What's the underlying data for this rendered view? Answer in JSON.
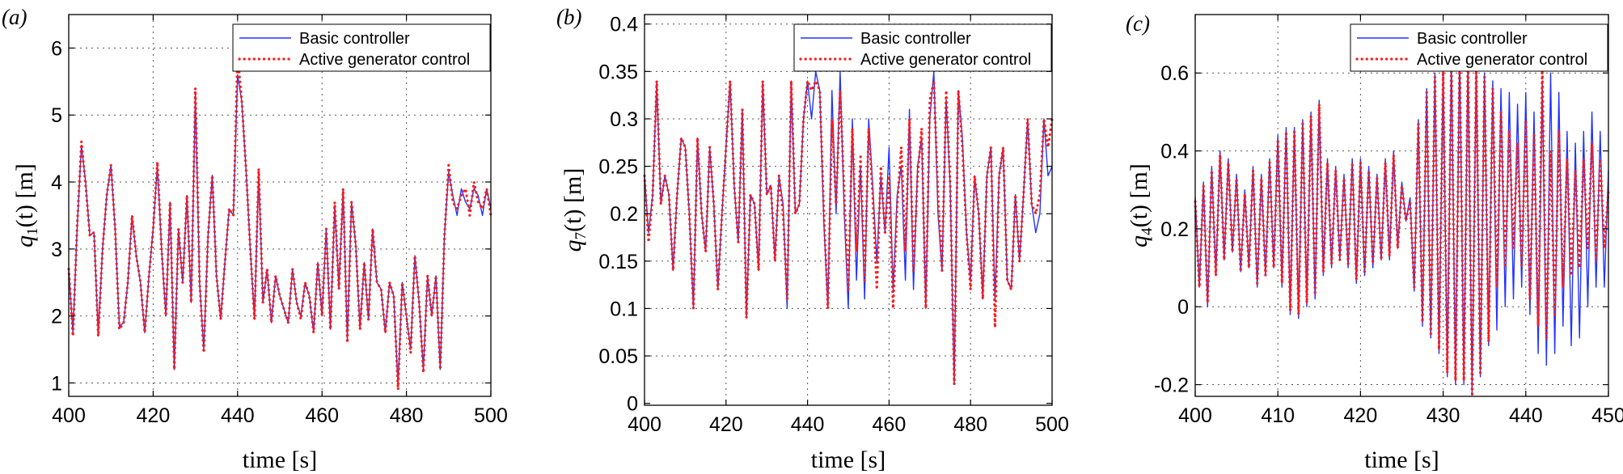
{
  "colors": {
    "basic": "#2233ff",
    "active": "#ff1a1a",
    "grid": "#555555",
    "frame": "#000000"
  },
  "chart_data": [
    {
      "type": "line",
      "panel_label": "(a)",
      "xlabel": "time [s]",
      "ylabel_var": "q",
      "ylabel_sub": "1",
      "ylabel_rest": "(t) [m]",
      "xlim": [
        400,
        500
      ],
      "ylim": [
        0.8,
        6.5
      ],
      "xticks": [
        400,
        420,
        440,
        460,
        480,
        500
      ],
      "yticks": [
        1,
        2,
        3,
        4,
        5,
        6
      ],
      "legend": [
        "Basic controller",
        "Active generator control"
      ],
      "legend_position": "top-right",
      "grid": true,
      "x": [
        400,
        401,
        402,
        403,
        404,
        405,
        406,
        407,
        408,
        409,
        410,
        411,
        412,
        413,
        414,
        415,
        416,
        417,
        418,
        419,
        420,
        421,
        422,
        423,
        424,
        425,
        426,
        427,
        428,
        429,
        430,
        431,
        432,
        433,
        434,
        435,
        436,
        437,
        438,
        439,
        440,
        441,
        442,
        443,
        444,
        445,
        446,
        447,
        448,
        449,
        450,
        451,
        452,
        453,
        454,
        455,
        456,
        457,
        458,
        459,
        460,
        461,
        462,
        463,
        464,
        465,
        466,
        467,
        468,
        469,
        470,
        471,
        472,
        473,
        474,
        475,
        476,
        477,
        478,
        479,
        480,
        481,
        482,
        483,
        484,
        485,
        486,
        487,
        488,
        489,
        490,
        491,
        492,
        493,
        494,
        495,
        496,
        497,
        498,
        499,
        500
      ],
      "series": [
        {
          "name": "Basic controller",
          "style": "solid",
          "values": [
            2.7,
            1.75,
            3.3,
            4.55,
            4.0,
            3.2,
            3.25,
            1.7,
            3.0,
            3.8,
            4.25,
            3.3,
            1.85,
            1.9,
            2.5,
            3.5,
            2.9,
            2.5,
            1.75,
            2.6,
            3.3,
            4.25,
            3.0,
            2.0,
            3.7,
            1.2,
            3.3,
            2.5,
            3.8,
            2.2,
            5.3,
            2.5,
            1.5,
            3.2,
            4.1,
            2.6,
            1.95,
            2.8,
            3.6,
            3.5,
            5.6,
            5.2,
            4.2,
            3.0,
            1.95,
            4.15,
            2.2,
            2.7,
            1.9,
            2.6,
            2.3,
            2.1,
            1.9,
            2.7,
            2.2,
            2.0,
            2.5,
            2.3,
            1.75,
            2.8,
            2.0,
            3.3,
            1.8,
            3.65,
            2.4,
            3.9,
            1.65,
            3.7,
            3.05,
            1.8,
            2.8,
            1.95,
            3.3,
            2.5,
            2.4,
            1.75,
            2.5,
            2.3,
            0.95,
            2.5,
            2.0,
            1.5,
            2.9,
            2.2,
            1.2,
            2.6,
            2.0,
            2.6,
            1.2,
            3.2,
            4.15,
            3.8,
            3.5,
            3.9,
            3.7,
            3.6,
            3.9,
            3.8,
            3.5,
            3.9,
            3.6
          ]
        },
        {
          "name": "Active generator control",
          "style": "dotted",
          "values": [
            2.7,
            1.7,
            3.35,
            4.6,
            3.95,
            3.2,
            3.25,
            1.7,
            3.0,
            3.8,
            4.25,
            3.3,
            1.8,
            1.9,
            2.5,
            3.5,
            2.9,
            2.5,
            1.75,
            2.6,
            3.3,
            4.3,
            3.0,
            2.0,
            3.7,
            1.2,
            3.3,
            2.5,
            3.8,
            2.2,
            5.4,
            2.5,
            1.45,
            3.2,
            4.1,
            2.6,
            1.95,
            2.8,
            3.6,
            3.5,
            5.9,
            5.2,
            4.2,
            3.0,
            1.95,
            4.2,
            2.2,
            2.7,
            1.9,
            2.6,
            2.3,
            2.1,
            1.9,
            2.7,
            2.2,
            1.95,
            2.5,
            2.3,
            1.75,
            2.8,
            2.0,
            3.3,
            1.8,
            3.7,
            2.4,
            3.9,
            1.6,
            3.7,
            3.05,
            1.8,
            2.8,
            1.95,
            3.3,
            2.5,
            2.4,
            1.75,
            2.5,
            2.3,
            0.9,
            2.5,
            2.0,
            1.45,
            2.9,
            2.2,
            1.15,
            2.6,
            2.0,
            2.6,
            1.2,
            3.2,
            4.25,
            3.7,
            3.6,
            3.8,
            3.9,
            3.5,
            4.0,
            3.7,
            3.6,
            3.9,
            3.5
          ]
        }
      ]
    },
    {
      "type": "line",
      "panel_label": "(b)",
      "xlabel": "time [s]",
      "ylabel_var": "q",
      "ylabel_sub": "7",
      "ylabel_rest": "(t) [m]",
      "xlim": [
        400,
        500
      ],
      "ylim": [
        -0.002,
        0.41
      ],
      "xticks": [
        400,
        420,
        440,
        460,
        480,
        500
      ],
      "yticks": [
        0,
        0.05,
        0.1,
        0.15,
        0.2,
        0.25,
        0.3,
        0.35,
        0.4
      ],
      "legend": [
        "Basic controller",
        "Active generator control"
      ],
      "legend_position": "top-right",
      "grid": true,
      "x": [
        400,
        401,
        402,
        403,
        404,
        405,
        406,
        407,
        408,
        409,
        410,
        411,
        412,
        413,
        414,
        415,
        416,
        417,
        418,
        419,
        420,
        421,
        422,
        423,
        424,
        425,
        426,
        427,
        428,
        429,
        430,
        431,
        432,
        433,
        434,
        435,
        436,
        437,
        438,
        439,
        440,
        441,
        442,
        443,
        444,
        445,
        446,
        447,
        448,
        449,
        450,
        451,
        452,
        453,
        454,
        455,
        456,
        457,
        458,
        459,
        460,
        461,
        462,
        463,
        464,
        465,
        466,
        467,
        468,
        469,
        470,
        471,
        472,
        473,
        474,
        475,
        476,
        477,
        478,
        479,
        480,
        481,
        482,
        483,
        484,
        485,
        486,
        487,
        488,
        489,
        490,
        491,
        492,
        493,
        494,
        495,
        496,
        497,
        498,
        499,
        500
      ],
      "series": [
        {
          "name": "Basic controller",
          "style": "solid",
          "values": [
            0.24,
            0.18,
            0.22,
            0.34,
            0.21,
            0.24,
            0.22,
            0.14,
            0.22,
            0.28,
            0.27,
            0.2,
            0.1,
            0.28,
            0.2,
            0.16,
            0.27,
            0.21,
            0.12,
            0.2,
            0.27,
            0.34,
            0.23,
            0.17,
            0.31,
            0.09,
            0.22,
            0.21,
            0.14,
            0.34,
            0.22,
            0.23,
            0.15,
            0.24,
            0.21,
            0.1,
            0.34,
            0.2,
            0.21,
            0.3,
            0.34,
            0.3,
            0.35,
            0.33,
            0.19,
            0.1,
            0.33,
            0.2,
            0.35,
            0.2,
            0.1,
            0.3,
            0.13,
            0.25,
            0.11,
            0.3,
            0.23,
            0.15,
            0.24,
            0.18,
            0.27,
            0.12,
            0.22,
            0.25,
            0.13,
            0.31,
            0.12,
            0.25,
            0.28,
            0.1,
            0.3,
            0.35,
            0.2,
            0.14,
            0.32,
            0.23,
            0.02,
            0.33,
            0.28,
            0.18,
            0.13,
            0.24,
            0.2,
            0.11,
            0.24,
            0.27,
            0.11,
            0.24,
            0.27,
            0.13,
            0.12,
            0.22,
            0.15,
            0.22,
            0.3,
            0.21,
            0.18,
            0.2,
            0.3,
            0.24,
            0.25
          ]
        },
        {
          "name": "Active generator control",
          "style": "dotted",
          "values": [
            0.24,
            0.17,
            0.22,
            0.34,
            0.21,
            0.24,
            0.22,
            0.14,
            0.22,
            0.28,
            0.27,
            0.2,
            0.1,
            0.28,
            0.2,
            0.16,
            0.27,
            0.21,
            0.12,
            0.2,
            0.27,
            0.34,
            0.23,
            0.17,
            0.31,
            0.09,
            0.22,
            0.21,
            0.14,
            0.34,
            0.22,
            0.23,
            0.15,
            0.24,
            0.2,
            0.11,
            0.34,
            0.2,
            0.21,
            0.3,
            0.34,
            0.33,
            0.34,
            0.33,
            0.2,
            0.1,
            0.3,
            0.21,
            0.33,
            0.22,
            0.12,
            0.29,
            0.16,
            0.26,
            0.13,
            0.29,
            0.22,
            0.12,
            0.25,
            0.18,
            0.24,
            0.1,
            0.21,
            0.27,
            0.16,
            0.3,
            0.14,
            0.24,
            0.29,
            0.1,
            0.32,
            0.34,
            0.22,
            0.14,
            0.33,
            0.23,
            0.02,
            0.33,
            0.27,
            0.18,
            0.12,
            0.24,
            0.2,
            0.11,
            0.24,
            0.27,
            0.08,
            0.24,
            0.27,
            0.13,
            0.12,
            0.22,
            0.15,
            0.22,
            0.3,
            0.21,
            0.2,
            0.22,
            0.3,
            0.27,
            0.3
          ]
        }
      ]
    },
    {
      "type": "line",
      "panel_label": "(c)",
      "xlabel": "time [s]",
      "ylabel_var": "q",
      "ylabel_sub": "4",
      "ylabel_rest": "(t) [m]",
      "xlim": [
        400,
        450
      ],
      "ylim": [
        -0.23,
        0.75
      ],
      "xticks": [
        400,
        410,
        420,
        430,
        440,
        450
      ],
      "yticks": [
        -0.2,
        0,
        0.2,
        0.4,
        0.6
      ],
      "legend": [
        "Basic controller",
        "Active generator control"
      ],
      "legend_position": "top-right",
      "grid": true,
      "x": [
        400,
        400.5,
        401,
        401.5,
        402,
        402.5,
        403,
        403.5,
        404,
        404.5,
        405,
        405.5,
        406,
        406.5,
        407,
        407.5,
        408,
        408.5,
        409,
        409.5,
        410,
        410.5,
        411,
        411.5,
        412,
        412.5,
        413,
        413.5,
        414,
        414.5,
        415,
        415.5,
        416,
        416.5,
        417,
        417.5,
        418,
        418.5,
        419,
        419.5,
        420,
        420.5,
        421,
        421.5,
        422,
        422.5,
        423,
        423.5,
        424,
        424.5,
        425,
        425.5,
        426,
        426.5,
        427,
        427.5,
        428,
        428.5,
        429,
        429.5,
        430,
        430.5,
        431,
        431.5,
        432,
        432.5,
        433,
        433.5,
        434,
        434.5,
        435,
        435.5,
        436,
        436.5,
        437,
        437.5,
        438,
        438.5,
        439,
        439.5,
        440,
        440.5,
        441,
        441.5,
        442,
        442.5,
        443,
        443.5,
        444,
        444.5,
        445,
        445.5,
        446,
        446.5,
        447,
        447.5,
        448,
        448.5,
        449,
        449.5,
        450
      ],
      "series": [
        {
          "name": "Basic controller",
          "style": "solid",
          "values": [
            0.28,
            0.05,
            0.32,
            0.0,
            0.36,
            0.08,
            0.4,
            0.12,
            0.38,
            0.14,
            0.34,
            0.09,
            0.3,
            0.1,
            0.36,
            0.05,
            0.34,
            0.08,
            0.38,
            0.1,
            0.44,
            0.05,
            0.46,
            -0.02,
            0.46,
            -0.03,
            0.48,
            0.0,
            0.5,
            0.02,
            0.53,
            0.08,
            0.38,
            0.1,
            0.36,
            0.12,
            0.34,
            0.1,
            0.38,
            0.06,
            0.38,
            0.08,
            0.36,
            0.1,
            0.34,
            0.12,
            0.38,
            0.12,
            0.4,
            0.15,
            0.32,
            0.22,
            0.28,
            0.04,
            0.48,
            -0.05,
            0.56,
            -0.08,
            0.6,
            -0.12,
            0.62,
            -0.18,
            0.64,
            -0.2,
            0.66,
            -0.2,
            0.65,
            -0.22,
            0.63,
            -0.18,
            0.6,
            -0.1,
            0.58,
            -0.06,
            0.56,
            0.0,
            0.55,
            0.02,
            0.52,
            0.05,
            0.55,
            -0.02,
            0.5,
            -0.12,
            0.58,
            -0.15,
            0.6,
            -0.12,
            0.55,
            -0.05,
            0.45,
            -0.1,
            0.42,
            -0.08,
            0.45,
            0.0,
            0.5,
            0.05,
            0.45,
            0.05,
            0.35
          ]
        },
        {
          "name": "Active generator control",
          "style": "dotted",
          "values": [
            0.27,
            0.05,
            0.31,
            0.01,
            0.35,
            0.08,
            0.39,
            0.12,
            0.37,
            0.14,
            0.33,
            0.09,
            0.29,
            0.1,
            0.35,
            0.06,
            0.33,
            0.08,
            0.37,
            0.1,
            0.43,
            0.06,
            0.45,
            -0.01,
            0.45,
            -0.02,
            0.47,
            0.01,
            0.49,
            0.03,
            0.52,
            0.09,
            0.37,
            0.11,
            0.35,
            0.12,
            0.33,
            0.11,
            0.37,
            0.07,
            0.37,
            0.09,
            0.35,
            0.11,
            0.33,
            0.12,
            0.37,
            0.13,
            0.39,
            0.15,
            0.31,
            0.22,
            0.27,
            0.05,
            0.47,
            -0.04,
            0.55,
            -0.07,
            0.59,
            -0.11,
            0.61,
            -0.17,
            0.63,
            -0.19,
            0.65,
            -0.19,
            0.64,
            -0.23,
            0.62,
            -0.17,
            0.59,
            -0.09,
            0.56,
            0.05,
            0.5,
            0.1,
            0.45,
            0.15,
            0.42,
            0.1,
            0.48,
            0.02,
            0.44,
            -0.05,
            0.62,
            -0.08,
            0.4,
            -0.02,
            0.45,
            0.05,
            0.38,
            0.08,
            0.35,
            0.1,
            0.38,
            0.15,
            0.42,
            0.12,
            0.38,
            0.15,
            0.3
          ]
        }
      ]
    }
  ]
}
